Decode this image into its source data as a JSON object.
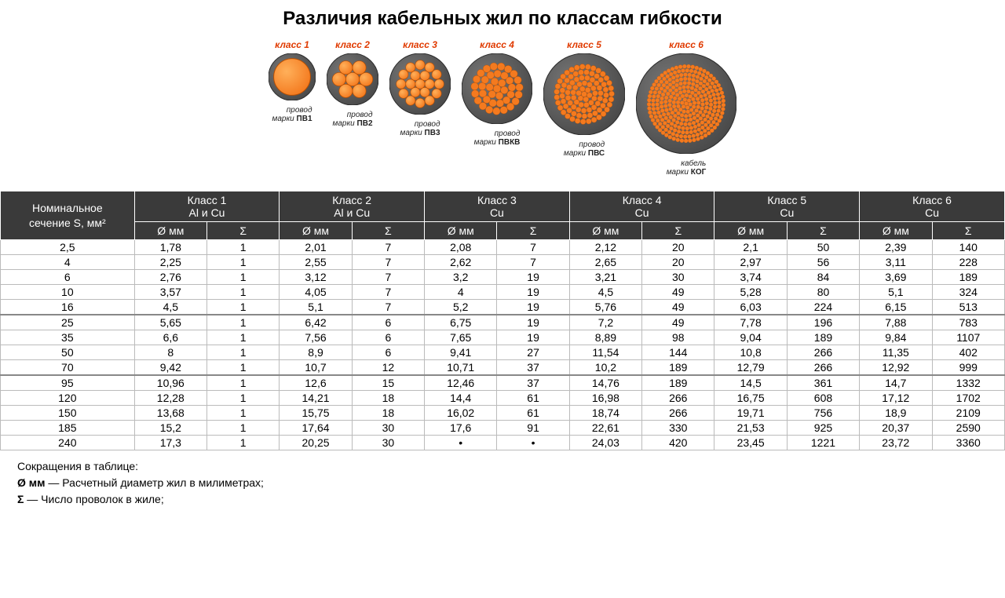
{
  "title": "Различия кабельных жил по классам гибкости",
  "class_label_color": "#e03a00",
  "cable_classes": [
    {
      "label": "класс 1",
      "brand_prefix": "провод",
      "brand_prefix2": "марки",
      "brand": "ПВ1",
      "diameter": 60,
      "strands_mode": "solid"
    },
    {
      "label": "класс 2",
      "brand_prefix": "провод",
      "brand_prefix2": "марки",
      "brand": "ПВ2",
      "diameter": 66,
      "strands_mode": "c7"
    },
    {
      "label": "класс 3",
      "brand_prefix": "провод",
      "brand_prefix2": "марки",
      "brand": "ПВ3",
      "diameter": 78,
      "strands_mode": "c19"
    },
    {
      "label": "класс 4",
      "brand_prefix": "провод",
      "brand_prefix2": "марки",
      "brand": "ПВКВ",
      "diameter": 90,
      "strands_mode": "many",
      "grid": 7
    },
    {
      "label": "класс 5",
      "brand_prefix": "провод",
      "brand_prefix2": "марки",
      "brand": "ПВС",
      "diameter": 104,
      "strands_mode": "many",
      "grid": 11
    },
    {
      "label": "класс 6",
      "brand_prefix": "кабель",
      "brand_prefix2": "марки",
      "brand": "КОГ",
      "diameter": 128,
      "strands_mode": "many",
      "grid": 18
    }
  ],
  "cable_colors": {
    "sheath": "#4a4a4a",
    "sheath_edge": "#2b2b2b",
    "copper": "#f47a1f",
    "copper_hi": "#ffb05a",
    "copper_edge": "#b74e00"
  },
  "table": {
    "rowhead_line1": "Номинальное",
    "rowhead_line2": "сечение S, мм²",
    "diam_label": "Ø мм",
    "sigma_label": "Σ",
    "class_headers": [
      {
        "name": "Класс 1",
        "mat": "Al и Cu"
      },
      {
        "name": "Класс 2",
        "mat": "Al и Cu"
      },
      {
        "name": "Класс 3",
        "mat": "Cu"
      },
      {
        "name": "Класс 4",
        "mat": "Cu"
      },
      {
        "name": "Класс 5",
        "mat": "Cu"
      },
      {
        "name": "Класс 6",
        "mat": "Cu"
      }
    ],
    "rows": [
      {
        "s": "2,5",
        "v": [
          "1,78",
          "1",
          "2,01",
          "7",
          "2,08",
          "7",
          "2,12",
          "20",
          "2,1",
          "50",
          "2,39",
          "140"
        ]
      },
      {
        "s": "4",
        "v": [
          "2,25",
          "1",
          "2,55",
          "7",
          "2,62",
          "7",
          "2,65",
          "20",
          "2,97",
          "56",
          "3,11",
          "228"
        ]
      },
      {
        "s": "6",
        "v": [
          "2,76",
          "1",
          "3,12",
          "7",
          "3,2",
          "19",
          "3,21",
          "30",
          "3,74",
          "84",
          "3,69",
          "189"
        ]
      },
      {
        "s": "10",
        "v": [
          "3,57",
          "1",
          "4,05",
          "7",
          "4",
          "19",
          "4,5",
          "49",
          "5,28",
          "80",
          "5,1",
          "324"
        ]
      },
      {
        "s": "16",
        "v": [
          "4,5",
          "1",
          "5,1",
          "7",
          "5,2",
          "19",
          "5,76",
          "49",
          "6,03",
          "224",
          "6,15",
          "513"
        ],
        "sep": true
      },
      {
        "s": "25",
        "v": [
          "5,65",
          "1",
          "6,42",
          "6",
          "6,75",
          "19",
          "7,2",
          "49",
          "7,78",
          "196",
          "7,88",
          "783"
        ]
      },
      {
        "s": "35",
        "v": [
          "6,6",
          "1",
          "7,56",
          "6",
          "7,65",
          "19",
          "8,89",
          "98",
          "9,04",
          "189",
          "9,84",
          "1107"
        ]
      },
      {
        "s": "50",
        "v": [
          "8",
          "1",
          "8,9",
          "6",
          "9,41",
          "27",
          "11,54",
          "144",
          "10,8",
          "266",
          "11,35",
          "402"
        ]
      },
      {
        "s": "70",
        "v": [
          "9,42",
          "1",
          "10,7",
          "12",
          "10,71",
          "37",
          "10,2",
          "189",
          "12,79",
          "266",
          "12,92",
          "999"
        ],
        "sep": true
      },
      {
        "s": "95",
        "v": [
          "10,96",
          "1",
          "12,6",
          "15",
          "12,46",
          "37",
          "14,76",
          "189",
          "14,5",
          "361",
          "14,7",
          "1332"
        ]
      },
      {
        "s": "120",
        "v": [
          "12,28",
          "1",
          "14,21",
          "18",
          "14,4",
          "61",
          "16,98",
          "266",
          "16,75",
          "608",
          "17,12",
          "1702"
        ]
      },
      {
        "s": "150",
        "v": [
          "13,68",
          "1",
          "15,75",
          "18",
          "16,02",
          "61",
          "18,74",
          "266",
          "19,71",
          "756",
          "18,9",
          "2109"
        ]
      },
      {
        "s": "185",
        "v": [
          "15,2",
          "1",
          "17,64",
          "30",
          "17,6",
          "91",
          "22,61",
          "330",
          "21,53",
          "925",
          "20,37",
          "2590"
        ]
      },
      {
        "s": "240",
        "v": [
          "17,3",
          "1",
          "20,25",
          "30",
          "•",
          "•",
          "24,03",
          "420",
          "23,45",
          "1221",
          "23,72",
          "3360"
        ]
      }
    ]
  },
  "legend": {
    "title": "Сокращения в таблице:",
    "diam": "Ø мм — Расчетный диаметр жил в милиметрах;",
    "diam_bold": "Ø мм",
    "sigma": "Σ — Число проволок в жиле;",
    "sigma_bold": "Σ"
  }
}
